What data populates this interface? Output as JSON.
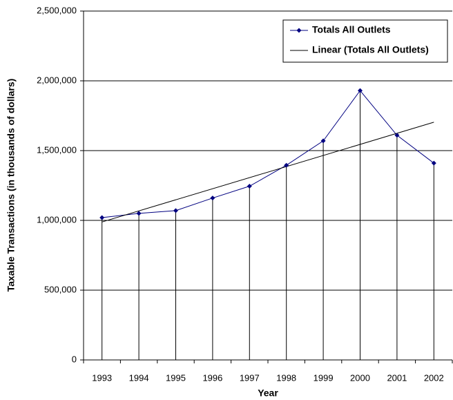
{
  "chart_data": {
    "type": "line",
    "x_label": "Year",
    "y_label": "Taxable Transactions (in thousands of dollars)",
    "categories": [
      "1993",
      "1994",
      "1995",
      "1996",
      "1997",
      "1998",
      "1999",
      "2000",
      "2001",
      "2002"
    ],
    "series": [
      {
        "name": "Totals All Outlets",
        "color": "#000080",
        "values": [
          1020000,
          1050000,
          1070000,
          1160000,
          1245000,
          1395000,
          1570000,
          1930000,
          1610000,
          1410000
        ]
      }
    ],
    "trendline": {
      "type": "linear",
      "label": "Linear (Totals All Outlets)",
      "color": "#000000"
    },
    "drop_lines": true,
    "ylim": [
      0,
      2500000
    ],
    "yticks": [
      0,
      {
        "value": 500000,
        "label": "500,000"
      },
      {
        "value": 1000000,
        "label": "1,000,000"
      },
      {
        "value": 1500000,
        "label": "1,500,000"
      },
      {
        "value": 2000000,
        "label": "2,000,000"
      },
      {
        "value": 2500000,
        "label": "2,500,000"
      }
    ],
    "grid": true,
    "legend": "top-right"
  }
}
